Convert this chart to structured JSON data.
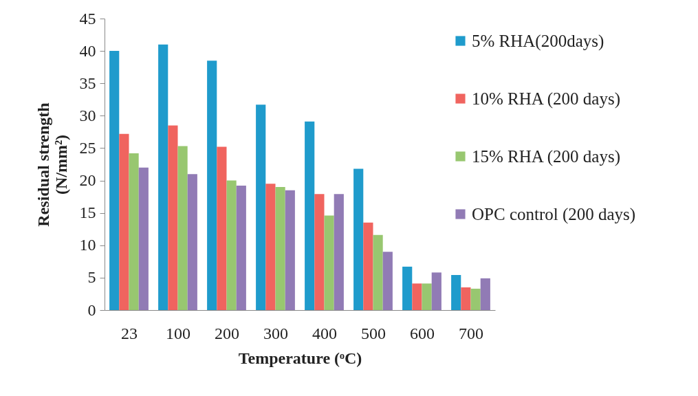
{
  "chart_data": {
    "type": "bar",
    "xlabel": "Temperature (ᵒC)",
    "ylabel": "Residual  strength\n(N/mm²)",
    "categories": [
      "23",
      "100",
      "200",
      "300",
      "400",
      "500",
      "600",
      "700"
    ],
    "series": [
      {
        "name": "5% RHA(200days)",
        "color": "#1f9bcc",
        "values": [
          40,
          41,
          38.5,
          31.7,
          29.1,
          21.8,
          6.7,
          5.4
        ]
      },
      {
        "name": "10% RHA (200 days)",
        "color": "#f0645f",
        "values": [
          27.2,
          28.5,
          25.2,
          19.5,
          17.9,
          13.5,
          4.1,
          3.5
        ]
      },
      {
        "name": "15% RHA (200 days)",
        "color": "#98c770",
        "values": [
          24.2,
          25.3,
          20,
          19,
          14.6,
          11.6,
          4.1,
          3.3
        ]
      },
      {
        "name": "OPC control (200 days)",
        "color": "#917bb5",
        "values": [
          22,
          21,
          19.2,
          18.5,
          17.9,
          9,
          5.8,
          4.9
        ]
      }
    ],
    "ylim": [
      0,
      45
    ],
    "yticks": [
      0,
      5,
      10,
      15,
      20,
      25,
      30,
      35,
      40,
      45
    ],
    "grid": false,
    "legend": "right"
  }
}
